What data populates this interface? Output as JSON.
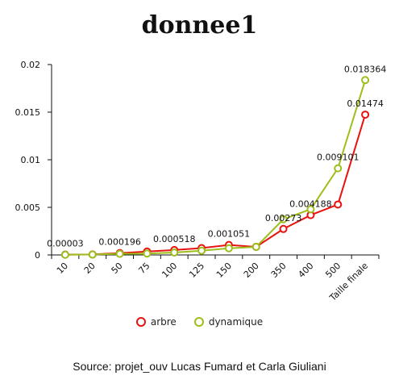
{
  "chart_data": {
    "type": "line",
    "title": "donnee1",
    "categories": [
      "10",
      "20",
      "50",
      "75",
      "100",
      "125",
      "150",
      "200",
      "350",
      "400",
      "500",
      "Taille finale"
    ],
    "ylim": [
      0,
      0.02
    ],
    "yticks": [
      "0",
      "0.005",
      "0.01",
      "0.015",
      "0.02"
    ],
    "ytick_values": [
      0,
      0.005,
      0.01,
      0.015,
      0.02
    ],
    "series": [
      {
        "name": "arbre",
        "color": "#e8130f",
        "values": [
          3e-05,
          5e-05,
          0.000196,
          0.00036,
          0.000518,
          0.00072,
          0.001051,
          0.00085,
          0.00273,
          0.004188,
          0.0053,
          0.01474
        ]
      },
      {
        "name": "dynamique",
        "color": "#9dbe1b",
        "values": [
          2e-05,
          4e-05,
          0.00012,
          0.00015,
          0.00025,
          0.00045,
          0.0007,
          0.00085,
          0.00375,
          0.0048,
          0.009101,
          0.018364
        ]
      }
    ],
    "data_labels": [
      {
        "series": 0,
        "index": 0,
        "text": "0.00003"
      },
      {
        "series": 0,
        "index": 2,
        "text": "0.000196"
      },
      {
        "series": 0,
        "index": 4,
        "text": "0.000518"
      },
      {
        "series": 0,
        "index": 6,
        "text": "0.001051"
      },
      {
        "series": 0,
        "index": 8,
        "text": "0.00273"
      },
      {
        "series": 0,
        "index": 9,
        "text": "0.004188"
      },
      {
        "series": 1,
        "index": 10,
        "text": "0.009101"
      },
      {
        "series": 1,
        "index": 11,
        "text": "0.018364"
      },
      {
        "series": 0,
        "index": 11,
        "text": "0.01474"
      }
    ],
    "legend_position": "bottom",
    "grid": false
  },
  "source": "Source: projet_ouv Lucas Fumard et Carla Giuliani"
}
